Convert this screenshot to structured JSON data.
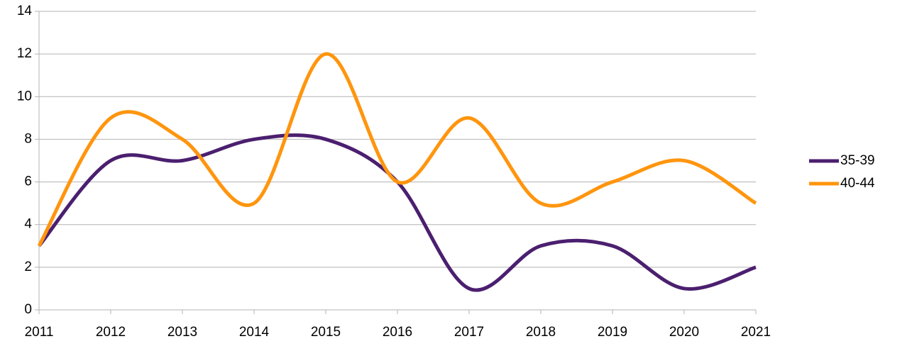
{
  "chart_data": {
    "type": "line",
    "categories": [
      "2011",
      "2012",
      "2013",
      "2014",
      "2015",
      "2016",
      "2017",
      "2018",
      "2019",
      "2020",
      "2021"
    ],
    "series": [
      {
        "name": "35-39",
        "color": "#4b1f6f",
        "values": [
          3,
          7,
          7,
          8,
          8,
          6,
          1,
          3,
          3,
          1,
          2
        ]
      },
      {
        "name": "40-44",
        "color": "#ff950e",
        "values": [
          3,
          9,
          8,
          5,
          12,
          6,
          9,
          5,
          6,
          7,
          5
        ]
      }
    ],
    "ylim": [
      0,
      14
    ],
    "yticks": [
      0,
      2,
      4,
      6,
      8,
      10,
      12,
      14
    ],
    "grid": true,
    "smooth": true,
    "legend": "right"
  }
}
